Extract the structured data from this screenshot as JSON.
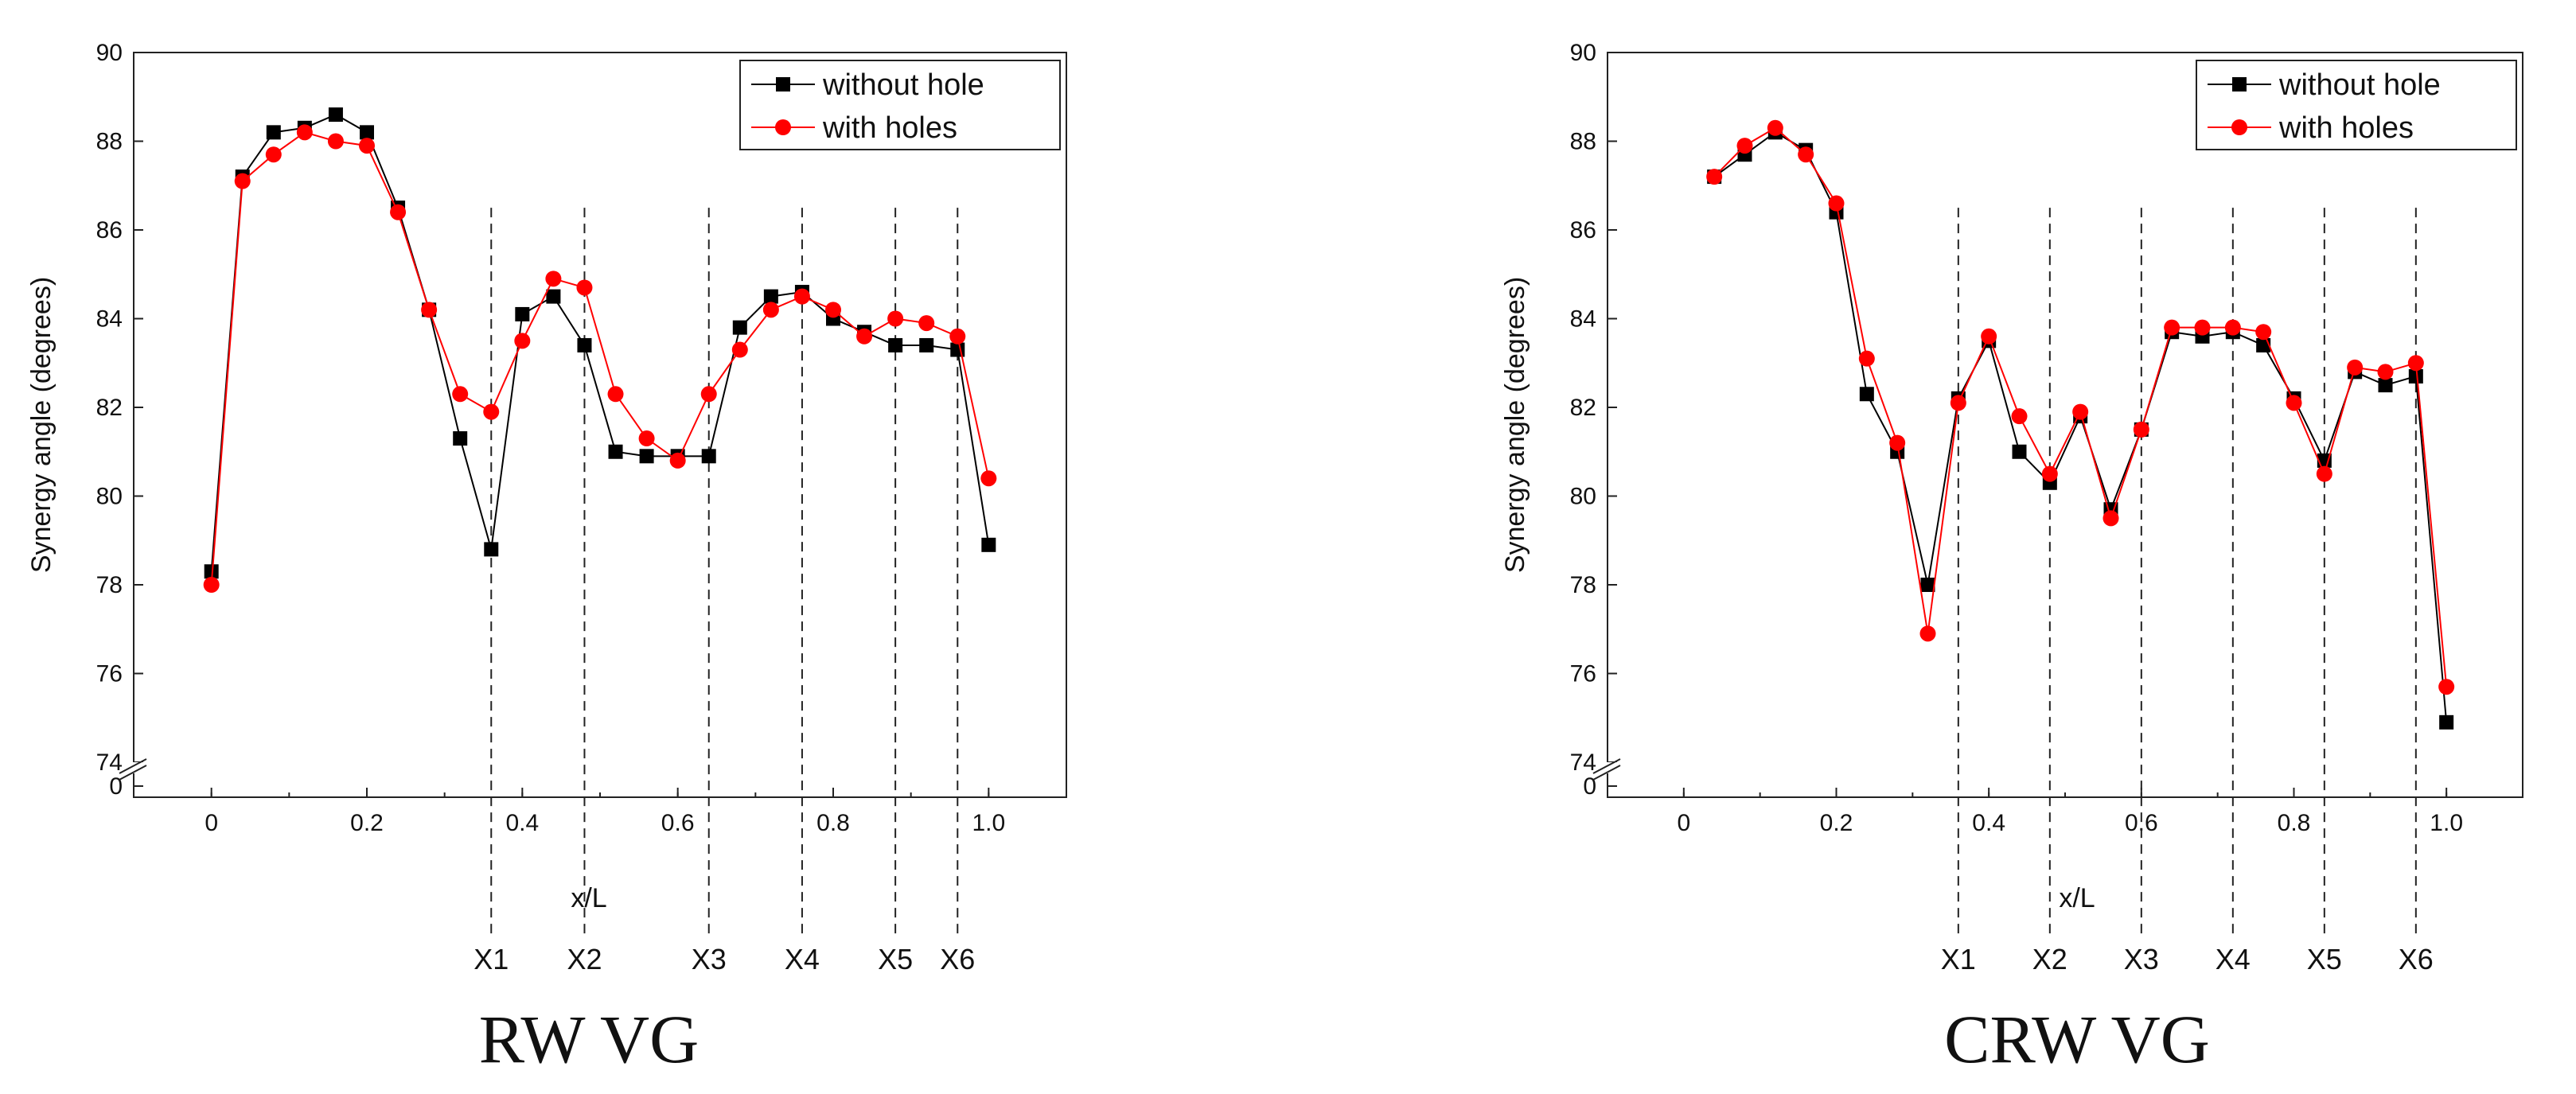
{
  "chart_data": [
    {
      "type": "line",
      "title": "RW VG",
      "xlabel": "x/L",
      "ylabel": "Synergy angle (degrees)",
      "xlim": [
        -0.1,
        1.1
      ],
      "ylim": [
        74,
        90
      ],
      "axis_break": true,
      "x_ticks": [
        0,
        0.2,
        0.4,
        0.6,
        0.8,
        1.0
      ],
      "x_tick_labels": [
        "0",
        "0.2",
        "0.4",
        "0.6",
        "0.8",
        "1.0"
      ],
      "y_ticks": [
        74,
        76,
        78,
        80,
        82,
        84,
        86,
        88,
        90
      ],
      "y_tick_labels": [
        "74",
        "76",
        "78",
        "80",
        "82",
        "84",
        "86",
        "88",
        "90"
      ],
      "y_zero_label": "0",
      "legend_position": "top-right",
      "series": [
        {
          "name": "without hole",
          "color": "#000000",
          "marker": "square",
          "x": [
            0,
            0.04,
            0.08,
            0.12,
            0.16,
            0.2,
            0.24,
            0.28,
            0.32,
            0.36,
            0.4,
            0.44,
            0.48,
            0.52,
            0.56,
            0.6,
            0.64,
            0.68,
            0.72,
            0.76,
            0.8,
            0.84,
            0.88,
            0.92,
            0.96,
            1.0
          ],
          "y": [
            78.3,
            87.2,
            88.2,
            88.3,
            88.6,
            88.2,
            86.5,
            84.2,
            81.3,
            78.8,
            84.1,
            84.5,
            83.4,
            81.0,
            80.9,
            80.9,
            80.9,
            83.8,
            84.5,
            84.6,
            84.0,
            83.7,
            83.4,
            83.4,
            83.3,
            78.9
          ]
        },
        {
          "name": "with holes",
          "color": "#ff0000",
          "marker": "circle",
          "x": [
            0,
            0.04,
            0.08,
            0.12,
            0.16,
            0.2,
            0.24,
            0.28,
            0.32,
            0.36,
            0.4,
            0.44,
            0.48,
            0.52,
            0.56,
            0.6,
            0.64,
            0.68,
            0.72,
            0.76,
            0.8,
            0.84,
            0.88,
            0.92,
            0.96,
            1.0
          ],
          "y": [
            78.0,
            87.1,
            87.7,
            88.2,
            88.0,
            87.9,
            86.4,
            84.2,
            82.3,
            81.9,
            83.5,
            84.9,
            84.7,
            82.3,
            81.3,
            80.8,
            82.3,
            83.3,
            84.2,
            84.5,
            84.2,
            83.6,
            84.0,
            83.9,
            83.6,
            80.4
          ]
        }
      ],
      "markers": [
        {
          "label": "X1",
          "x": 0.36
        },
        {
          "label": "X2",
          "x": 0.48
        },
        {
          "label": "X3",
          "x": 0.64
        },
        {
          "label": "X4",
          "x": 0.76
        },
        {
          "label": "X5",
          "x": 0.88
        },
        {
          "label": "X6",
          "x": 0.96
        }
      ],
      "marker_line_top": 86.5
    },
    {
      "type": "line",
      "title": "CRW VG",
      "xlabel": "x/L",
      "ylabel": "Synergy angle (degrees)",
      "xlim": [
        -0.1,
        1.1
      ],
      "ylim": [
        74,
        90
      ],
      "axis_break": true,
      "x_ticks": [
        0,
        0.2,
        0.4,
        0.6,
        0.8,
        1.0
      ],
      "x_tick_labels": [
        "0",
        "0.2",
        "0.4",
        "0.6",
        "0.8",
        "1.0"
      ],
      "y_ticks": [
        74,
        76,
        78,
        80,
        82,
        84,
        86,
        88,
        90
      ],
      "y_tick_labels": [
        "74",
        "76",
        "78",
        "80",
        "82",
        "84",
        "86",
        "88",
        "90"
      ],
      "y_zero_label": "0",
      "legend_position": "top-right",
      "series": [
        {
          "name": "without hole",
          "color": "#000000",
          "marker": "square",
          "x": [
            0.04,
            0.08,
            0.12,
            0.16,
            0.2,
            0.24,
            0.28,
            0.32,
            0.36,
            0.4,
            0.44,
            0.48,
            0.52,
            0.56,
            0.6,
            0.64,
            0.68,
            0.72,
            0.76,
            0.8,
            0.84,
            0.88,
            0.92,
            0.96,
            1.0
          ],
          "y": [
            87.2,
            87.7,
            88.2,
            87.8,
            86.4,
            82.3,
            81.0,
            78.0,
            82.2,
            83.5,
            81.0,
            80.3,
            81.8,
            79.7,
            81.5,
            83.7,
            83.6,
            83.7,
            83.4,
            82.2,
            80.8,
            82.8,
            82.5,
            82.7,
            74.9
          ]
        },
        {
          "name": "with holes",
          "color": "#ff0000",
          "marker": "circle",
          "x": [
            0.04,
            0.08,
            0.12,
            0.16,
            0.2,
            0.24,
            0.28,
            0.32,
            0.36,
            0.4,
            0.44,
            0.48,
            0.52,
            0.56,
            0.6,
            0.64,
            0.68,
            0.72,
            0.76,
            0.8,
            0.84,
            0.88,
            0.92,
            0.96,
            1.0
          ],
          "y": [
            87.2,
            87.9,
            88.3,
            87.7,
            86.6,
            83.1,
            81.2,
            76.9,
            82.1,
            83.6,
            81.8,
            80.5,
            81.9,
            79.5,
            81.5,
            83.8,
            83.8,
            83.8,
            83.7,
            82.1,
            80.5,
            82.9,
            82.8,
            83.0,
            75.7
          ]
        }
      ],
      "markers": [
        {
          "label": "X1",
          "x": 0.36
        },
        {
          "label": "X2",
          "x": 0.48
        },
        {
          "label": "X3",
          "x": 0.6
        },
        {
          "label": "X4",
          "x": 0.72
        },
        {
          "label": "X5",
          "x": 0.84
        },
        {
          "label": "X6",
          "x": 0.96
        }
      ],
      "marker_line_top": 86.5
    }
  ]
}
